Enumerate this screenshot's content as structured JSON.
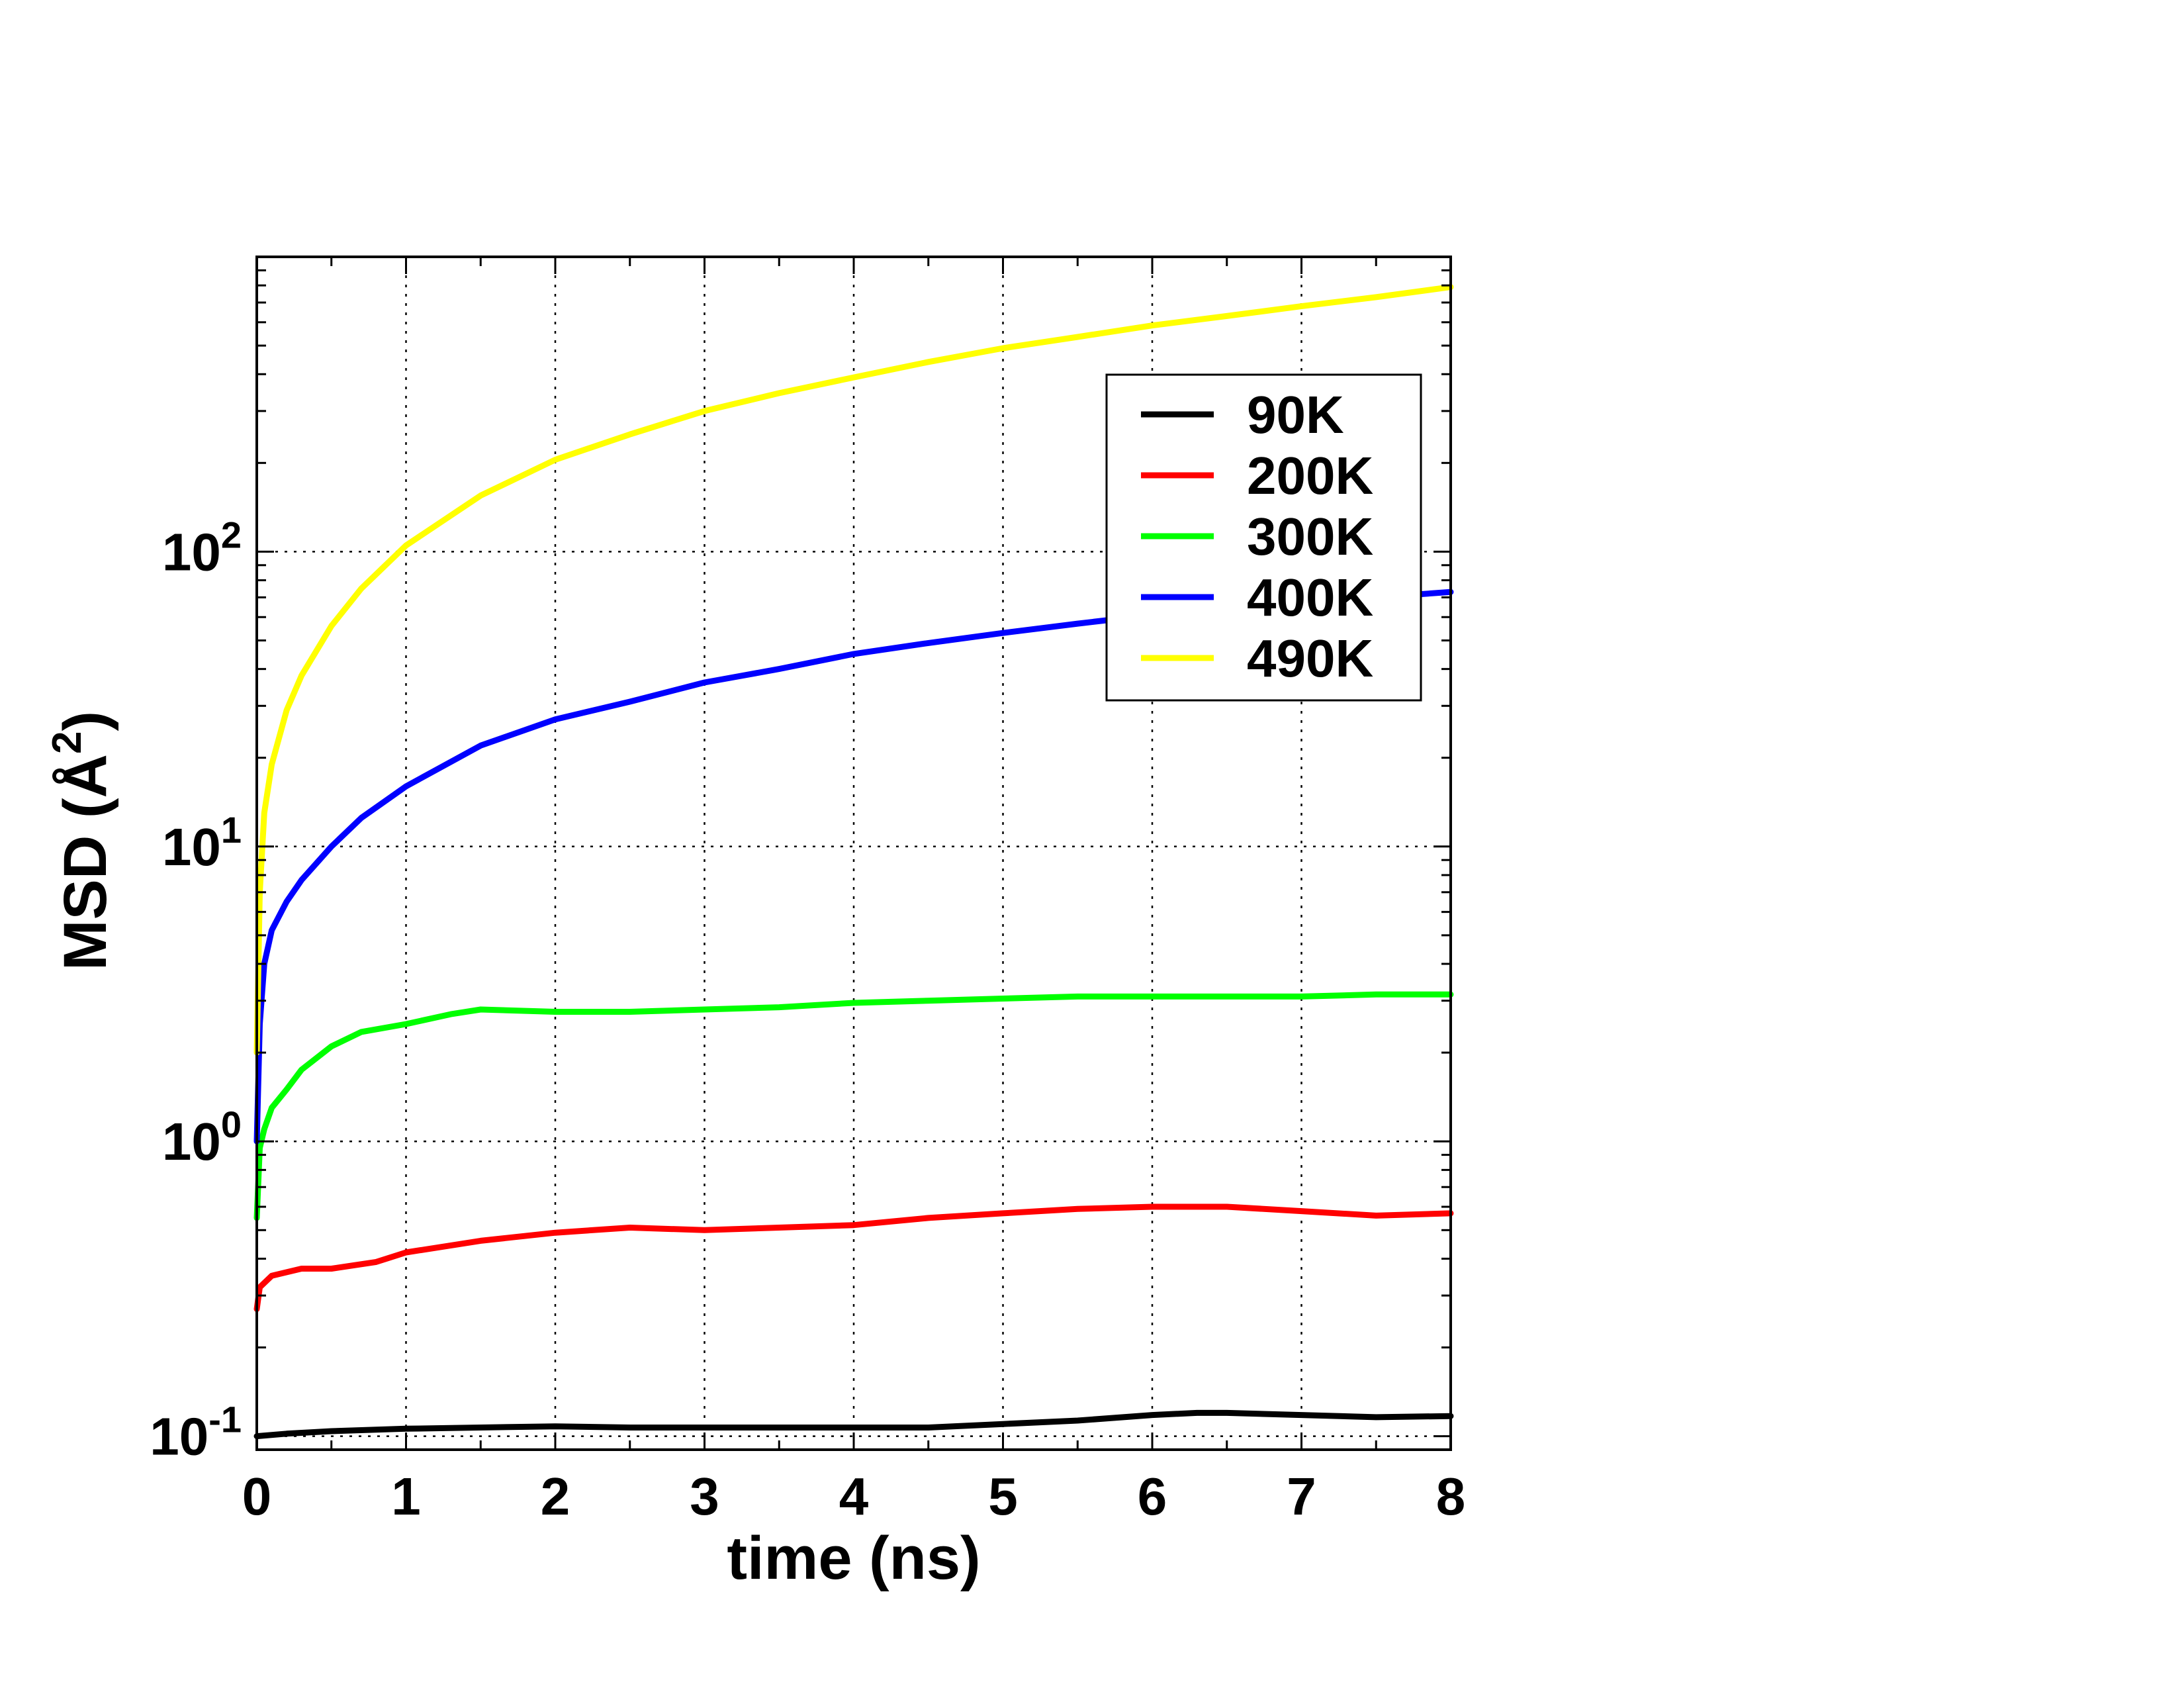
{
  "chart_data": {
    "type": "line",
    "xlabel": "time (ns)",
    "ylabel_main": "MSD (",
    "ylabel_unit": "Å",
    "ylabel_exp": "2",
    "ylabel_close": ")",
    "xlim": [
      0,
      8
    ],
    "ylim": [
      0.09,
      1000
    ],
    "yscale": "log",
    "grid": true,
    "legend_position": "top-right",
    "x_ticks": [
      "0",
      "1",
      "2",
      "3",
      "4",
      "5",
      "6",
      "7",
      "8"
    ],
    "y_ticks": [
      {
        "base": "10",
        "exp": "-1",
        "value": 0.1
      },
      {
        "base": "10",
        "exp": "0",
        "value": 1
      },
      {
        "base": "10",
        "exp": "1",
        "value": 10
      },
      {
        "base": "10",
        "exp": "2",
        "value": 100
      }
    ],
    "series": [
      {
        "name": "90K",
        "color": "#000000",
        "x": [
          0,
          0.2,
          0.5,
          1,
          1.5,
          2,
          2.5,
          3,
          3.5,
          4,
          4.5,
          5,
          5.5,
          6,
          6.3,
          6.5,
          7,
          7.5,
          8
        ],
        "y": [
          0.1,
          0.102,
          0.104,
          0.106,
          0.107,
          0.108,
          0.107,
          0.107,
          0.107,
          0.107,
          0.107,
          0.11,
          0.113,
          0.118,
          0.12,
          0.12,
          0.118,
          0.116,
          0.117
        ]
      },
      {
        "name": "200K",
        "color": "#ff0000",
        "x": [
          0,
          0.02,
          0.1,
          0.3,
          0.5,
          0.8,
          1,
          1.5,
          2,
          2.5,
          3,
          3.5,
          4,
          4.5,
          5,
          5.5,
          6,
          6.5,
          7,
          7.5,
          8
        ],
        "y": [
          0.27,
          0.32,
          0.35,
          0.37,
          0.37,
          0.39,
          0.42,
          0.46,
          0.49,
          0.51,
          0.5,
          0.51,
          0.52,
          0.55,
          0.57,
          0.59,
          0.6,
          0.6,
          0.58,
          0.56,
          0.57
        ]
      },
      {
        "name": "300K",
        "color": "#00ff00",
        "x": [
          0,
          0.02,
          0.05,
          0.1,
          0.2,
          0.3,
          0.5,
          0.7,
          1,
          1.3,
          1.5,
          2,
          2.5,
          3,
          3.5,
          4,
          4.5,
          5,
          5.5,
          6,
          6.5,
          7,
          7.5,
          8
        ],
        "y": [
          0.55,
          0.95,
          1.1,
          1.3,
          1.5,
          1.75,
          2.1,
          2.35,
          2.5,
          2.7,
          2.8,
          2.75,
          2.75,
          2.8,
          2.85,
          2.95,
          3.0,
          3.05,
          3.1,
          3.1,
          3.1,
          3.1,
          3.15,
          3.15
        ]
      },
      {
        "name": "400K",
        "color": "#0000ff",
        "x": [
          0,
          0.02,
          0.05,
          0.1,
          0.2,
          0.3,
          0.5,
          0.7,
          1,
          1.5,
          2,
          2.5,
          3,
          3.5,
          4,
          4.5,
          5,
          5.5,
          6,
          6.5,
          7,
          7.5,
          8
        ],
        "y": [
          1.0,
          2.5,
          4.0,
          5.2,
          6.5,
          7.7,
          10,
          12.5,
          16,
          22,
          27,
          31,
          36,
          40,
          45,
          49,
          53,
          57,
          61,
          64,
          67,
          70,
          73
        ]
      },
      {
        "name": "490K",
        "color": "#ffff00",
        "x": [
          0,
          0.02,
          0.05,
          0.1,
          0.2,
          0.3,
          0.5,
          0.7,
          1,
          1.5,
          2,
          2.5,
          3,
          3.5,
          4,
          4.5,
          5,
          5.5,
          6,
          6.5,
          7,
          7.5,
          8
        ],
        "y": [
          2.0,
          7,
          13,
          19,
          29,
          38,
          56,
          75,
          105,
          155,
          205,
          250,
          300,
          345,
          390,
          440,
          490,
          535,
          585,
          630,
          680,
          730,
          790
        ]
      }
    ]
  }
}
